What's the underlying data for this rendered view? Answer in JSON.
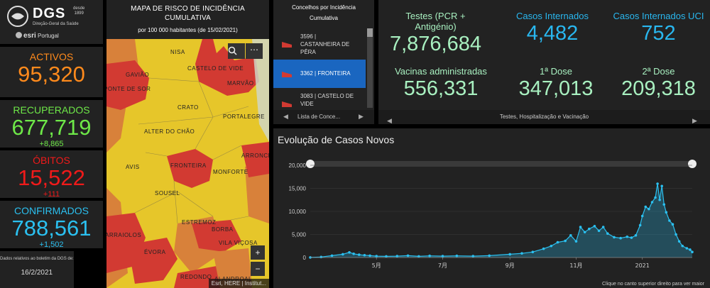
{
  "header": {
    "logo_text": "DGS",
    "logo_since": "desde",
    "logo_year": "1899",
    "logo_subtitle": "Direção-Geral da Saúde",
    "partner_text": "esri",
    "partner_region": "Portugal"
  },
  "stats": {
    "activos": {
      "label": "ACTIVOS",
      "value": "95,320"
    },
    "recuperados": {
      "label": "RECUPERADOS",
      "value": "677,719",
      "delta": "+8,865"
    },
    "obitos": {
      "label": "ÓBITOS",
      "value": "15,522",
      "delta": "+111"
    },
    "confirmados": {
      "label": "CONFIRMADOS",
      "value": "788,561",
      "delta": "+1,502"
    },
    "update_note": "Dados relativos ao boletim da DGS de:",
    "update_date": "16/2/2021"
  },
  "map": {
    "title_line1": "MAPA DE RISCO DE INCIDÊNCIA",
    "title_line2": "CUMULATIVA",
    "subtitle": "por 100 000 habitantes (de 15/02/2021)",
    "places": [
      "NISA",
      "GAVIÃO",
      "CASTELO DE VIDE",
      "PONTE DE SOR",
      "MARVÃO",
      "CRATO",
      "PORTALEGRE",
      "ALTER DO CHÃO",
      "ARRONCHES",
      "AVIS",
      "FRONTEIRA",
      "MONFORTE",
      "SOUSEL",
      "ESTREMOZ",
      "ARRAIOLOS",
      "BORBA",
      "VILA VIÇOSA",
      "ÉVORA",
      "REDONDO",
      "ALANDROAL"
    ],
    "zoom_in": "+",
    "zoom_out": "−",
    "search_icon": "search-icon",
    "more_icon": "more-icon",
    "attribution": "Esri, HERE | Institut..."
  },
  "incidence_list": {
    "title_line1": "Concelhos por Incidência",
    "title_line2": "Cumulativa",
    "items": [
      {
        "value": "3596 |",
        "name": "CASTANHEIRA DE PÊRA"
      },
      {
        "value": "3362 |",
        "name": "FRONTEIRA"
      },
      {
        "value": "3083 |",
        "name": "CASTELO DE VIDE"
      }
    ],
    "footer_label": "Lista de Conce..."
  },
  "top_stats": {
    "testes": {
      "label": "Testes (PCR + Antigénio)",
      "value": "7,876,684"
    },
    "internados": {
      "label": "Casos Internados",
      "value": "4,482"
    },
    "uci": {
      "label": "Casos Internados UCI",
      "value": "752"
    },
    "vacinas": {
      "label": "Vacinas administradas",
      "value": "556,331"
    },
    "dose1": {
      "label": "1ª Dose",
      "value": "347,013"
    },
    "dose2": {
      "label": "2ª Dose",
      "value": "209,318"
    },
    "footer_label": "Testes, Hospitalização e Vacinação"
  },
  "colors": {
    "activos": "#ff8a1c",
    "recuperados": "#6ee848",
    "obitos": "#f01a1a",
    "confirmados": "#2bc0f0",
    "testes": "#a8f0c0",
    "internados": "#29b7ef",
    "vacinas": "#a8f0c0",
    "map_red": "#d23a32",
    "map_yellow": "#e6c62a",
    "map_orange": "#d8813a",
    "chart_line": "#2bc0f0"
  },
  "chart_data": {
    "type": "area",
    "title": "Evolução de Casos Novos",
    "xlabel": "",
    "ylabel": "",
    "ylim": [
      0,
      20000
    ],
    "y_ticks": [
      "0",
      "5,000",
      "10,000",
      "15,000",
      "20,000"
    ],
    "x_tick_labels": [
      "5月",
      "7月",
      "9月",
      "11月",
      "2021"
    ],
    "x_tick_days": [
      61,
      122,
      184,
      245,
      306
    ],
    "series": [
      {
        "name": "Casos Novos",
        "x": [
          0,
          10,
          20,
          30,
          36,
          40,
          45,
          50,
          55,
          61,
          70,
          80,
          90,
          100,
          110,
          122,
          135,
          150,
          165,
          184,
          195,
          205,
          215,
          222,
          228,
          235,
          240,
          245,
          249,
          253,
          257,
          262,
          266,
          270,
          274,
          280,
          286,
          292,
          296,
          300,
          304,
          306,
          309,
          312,
          315,
          318,
          320,
          322,
          324,
          326,
          328,
          331,
          334,
          337,
          340,
          343,
          347,
          350,
          352
        ],
        "values": [
          10,
          100,
          400,
          700,
          1100,
          800,
          600,
          500,
          400,
          300,
          250,
          300,
          400,
          250,
          350,
          300,
          350,
          300,
          400,
          700,
          900,
          1200,
          1900,
          2500,
          3300,
          3600,
          4800,
          3500,
          6600,
          5500,
          6200,
          6800,
          5800,
          6600,
          5200,
          4400,
          4200,
          4500,
          4300,
          4800,
          7000,
          9000,
          11000,
          10500,
          12000,
          13000,
          16000,
          12500,
          15500,
          11500,
          9800,
          8000,
          7200,
          5000,
          3500,
          2500,
          2000,
          1700,
          1200
        ]
      }
    ],
    "x_range": [
      0,
      352
    ],
    "footer_note": "Clique no canto superior direito para ver maior"
  }
}
